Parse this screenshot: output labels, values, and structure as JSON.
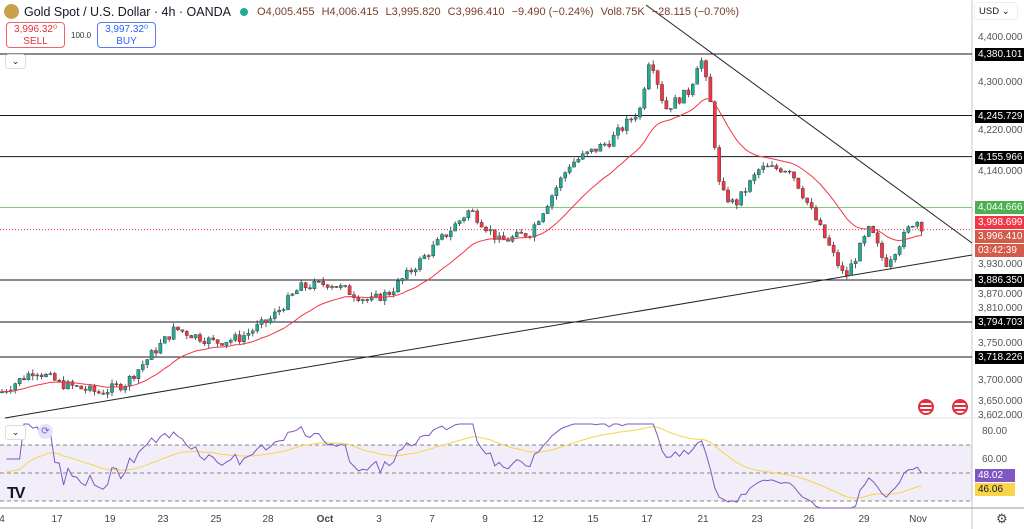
{
  "header": {
    "symbol": "Gold Spot / U.S. Dollar · 4h · OANDA",
    "open": "O4,005.455",
    "high": "H4,006.415",
    "low": "L3,995.820",
    "close": "C3,996.410",
    "change": "−9.490 (−0.24%)",
    "vol": "Vol8.75K",
    "vol_change": "−28.115 (−0.70%)"
  },
  "trade": {
    "sell_price": "3,996.32⁰",
    "sell_label": "SELL",
    "spread": "100.0",
    "buy_price": "3,997.32⁰",
    "buy_label": "BUY"
  },
  "currency": "USD",
  "price_axis": [
    "4,400.000",
    "4,300.000",
    "4,220.000",
    "4,140.000",
    "3,930.000",
    "3,870.000",
    "3,810.000",
    "3,750.000",
    "3,700.000",
    "3,650.000",
    "3,602.000"
  ],
  "levels": [
    {
      "label": "4,380.101",
      "value": 4380.101
    },
    {
      "label": "4,245.729",
      "value": 4245.729
    },
    {
      "label": "4,155.966",
      "value": 4155.966
    },
    {
      "label": "3,886.350",
      "value": 3886.35
    },
    {
      "label": "3,794.703",
      "value": 3794.703
    },
    {
      "label": "3,718.226",
      "value": 3718.226
    }
  ],
  "markers": {
    "green": {
      "label": "4,044.666",
      "value": 4044.666
    },
    "ema": {
      "label": "3,998.699",
      "value": 3998.699
    },
    "last": {
      "label": "3,996.410",
      "value": 3996.41
    },
    "countdown": "03:42:39"
  },
  "rsi": {
    "axis": [
      "80.00",
      "60.00"
    ],
    "rsi_value": "48.02",
    "ma_value": "46.06"
  },
  "time_axis": [
    "4",
    "17",
    "19",
    "23",
    "25",
    "28",
    "Oct",
    "3",
    "7",
    "9",
    "12",
    "15",
    "17",
    "21",
    "23",
    "26",
    "29",
    "Nov"
  ],
  "colors": {
    "up": "#22ab94",
    "down": "#f23645",
    "ema": "#f23645",
    "rsi": "#7e57c2",
    "rsi_ma": "#f7d44a",
    "level": "#131722",
    "green_line": "#81c784"
  },
  "chart_data": {
    "type": "candlestick",
    "price_path": [
      [
        0,
        3640
      ],
      [
        35,
        3690
      ],
      [
        60,
        3660
      ],
      [
        100,
        3640
      ],
      [
        125,
        3660
      ],
      [
        175,
        3780
      ],
      [
        215,
        3750
      ],
      [
        240,
        3760
      ],
      [
        270,
        3800
      ],
      [
        300,
        3870
      ],
      [
        330,
        3880
      ],
      [
        370,
        3840
      ],
      [
        390,
        3860
      ],
      [
        430,
        3950
      ],
      [
        470,
        4040
      ],
      [
        500,
        3970
      ],
      [
        530,
        3990
      ],
      [
        570,
        4140
      ],
      [
        610,
        4190
      ],
      [
        640,
        4260
      ],
      [
        650,
        4380
      ],
      [
        665,
        4260
      ],
      [
        690,
        4300
      ],
      [
        700,
        4380
      ],
      [
        710,
        4280
      ],
      [
        720,
        4080
      ],
      [
        735,
        4050
      ],
      [
        760,
        4130
      ],
      [
        790,
        4130
      ],
      [
        820,
        4000
      ],
      [
        845,
        3890
      ],
      [
        870,
        4000
      ],
      [
        885,
        3920
      ],
      [
        905,
        3985
      ],
      [
        915,
        4020
      ],
      [
        925,
        3996
      ]
    ]
  }
}
